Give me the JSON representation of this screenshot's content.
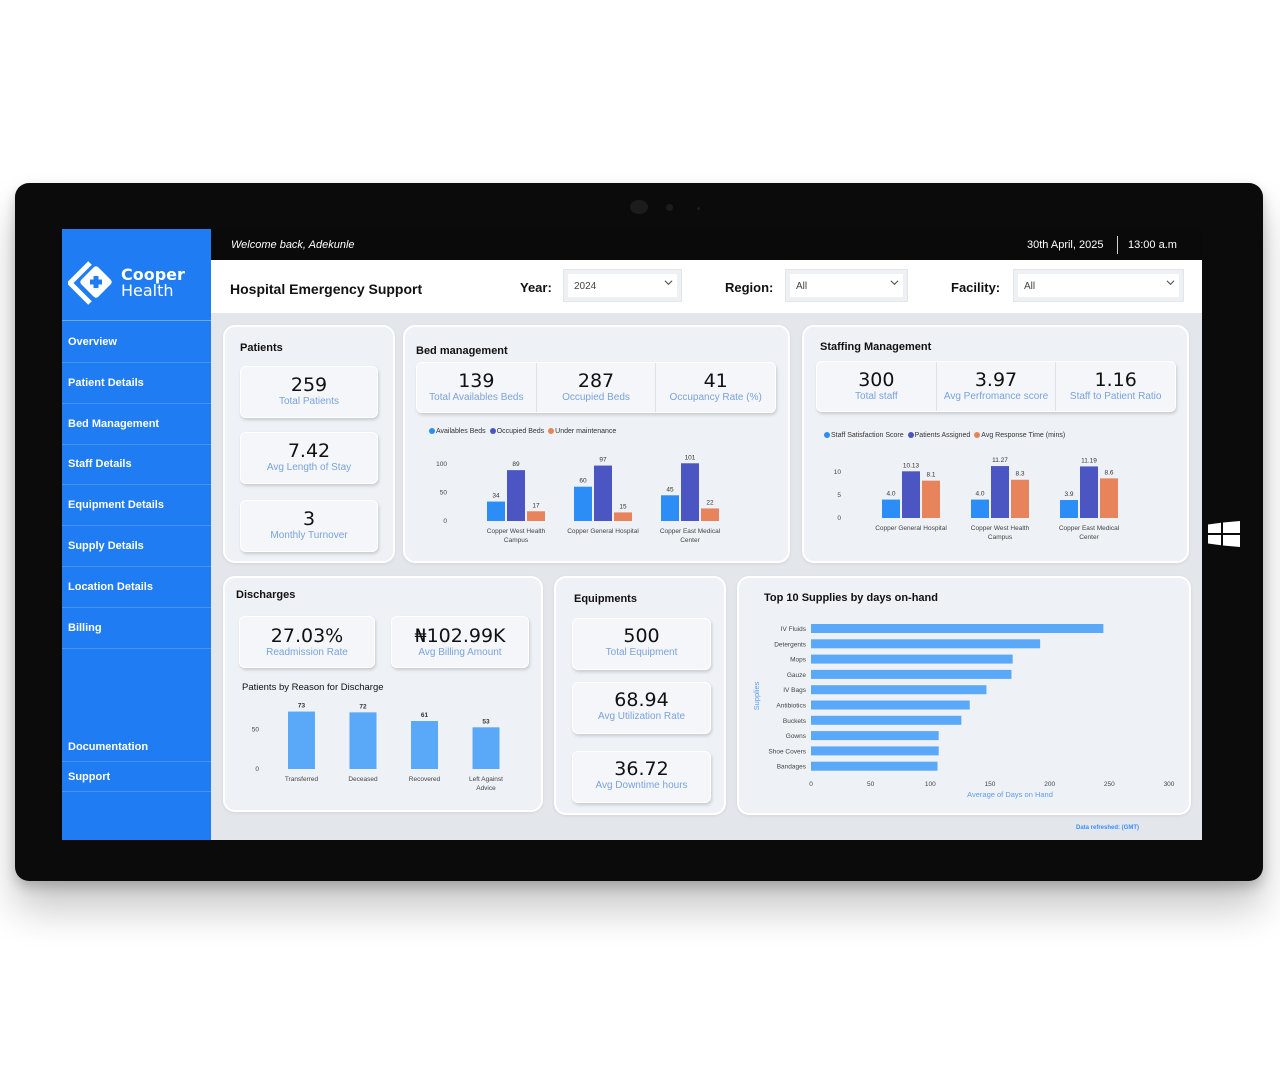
{
  "app": {
    "brand_line1": "Cooper",
    "brand_line2": "Health",
    "welcome": "Welcome back, Adekunle",
    "date": "30th April, 2025",
    "time": "13:00 a.m",
    "page_title": "Hospital Emergency Support",
    "data_refreshed": "Data refreshed: (GMT)"
  },
  "nav": {
    "items": [
      "Overview",
      "Patient Details",
      "Bed Management",
      "Staff Details",
      "Equipment Details",
      "Supply Details",
      "Location Details",
      "Billing"
    ],
    "documentation": "Documentation",
    "support": "Support"
  },
  "filters": {
    "year_label": "Year:",
    "year_value": "2024",
    "region_label": "Region:",
    "region_value": "All",
    "facility_label": "Facility:",
    "facility_value": "All"
  },
  "patients": {
    "title": "Patients",
    "kpis": [
      {
        "value": "259",
        "label": "Total Patients"
      },
      {
        "value": "7.42",
        "label": "Avg Length of Stay"
      },
      {
        "value": "3",
        "label": "Monthly Turnover"
      }
    ]
  },
  "beds": {
    "title": "Bed management",
    "kpis": [
      {
        "value": "139",
        "label": "Total Availables Beds"
      },
      {
        "value": "287",
        "label": "Occupied Beds"
      },
      {
        "value": "41",
        "label": "Occupancy Rate (%)"
      }
    ],
    "legend": [
      "Availables Beds",
      "Occupied Beds",
      "Under maintenance"
    ]
  },
  "staffing": {
    "title": "Staffing Management",
    "kpis": [
      {
        "value": "300",
        "label": "Total staff"
      },
      {
        "value": "3.97",
        "label": "Avg Perfromance score"
      },
      {
        "value": "1.16",
        "label": "Staff to Patient Ratio"
      }
    ],
    "legend": [
      "Staff Satisfaction Score",
      "Patients Assigned",
      "Avg Response Time (mins)"
    ]
  },
  "discharges": {
    "title": "Discharges",
    "kpis": [
      {
        "value": "27.03%",
        "label": "Readmission Rate"
      },
      {
        "value": "₦102.99K",
        "label": "Avg Billing Amount"
      }
    ],
    "chart_title": "Patients by Reason for Discharge"
  },
  "equipments": {
    "title": "Equipments",
    "kpis": [
      {
        "value": "500",
        "label": "Total Equipment"
      },
      {
        "value": "68.94",
        "label": "Avg Utilization Rate"
      },
      {
        "value": "36.72",
        "label": "Avg Downtime hours"
      }
    ]
  },
  "supplies": {
    "title": "Top 10 Supplies by days on-hand"
  },
  "colors": {
    "accent": "#1f7cf2",
    "series_light_blue": "#2b8df5",
    "series_indigo": "#4b56c2",
    "series_orange": "#e8845c",
    "bar_light": "#5aa9f8"
  },
  "chart_data": [
    {
      "id": "beds",
      "type": "bar",
      "categories": [
        "Copper West Health Campus",
        "Copper General Hospital",
        "Copper East Medical Center"
      ],
      "series": [
        {
          "name": "Availables Beds",
          "values": [
            34,
            60,
            45
          ]
        },
        {
          "name": "Occupied Beds",
          "values": [
            89,
            97,
            101
          ]
        },
        {
          "name": "Under maintenance",
          "values": [
            17,
            15,
            22
          ]
        }
      ],
      "yticks": [
        0,
        50,
        100
      ],
      "ylim": [
        0,
        105
      ],
      "legend": "top-left"
    },
    {
      "id": "staff",
      "type": "bar",
      "categories": [
        "Copper General Hospital",
        "Copper West Health Campus",
        "Copper East Medical Center"
      ],
      "series": [
        {
          "name": "Staff Satisfaction Score",
          "values": [
            4.0,
            4.0,
            3.9
          ]
        },
        {
          "name": "Patients Assigned",
          "values": [
            10.13,
            11.27,
            11.19
          ]
        },
        {
          "name": "Avg Response Time (mins)",
          "values": [
            8.1,
            8.3,
            8.6
          ]
        }
      ],
      "value_labels": [
        [
          "4.0",
          "4.0",
          "3.9"
        ],
        [
          "10.13",
          "11.27",
          "11.19"
        ],
        [
          "8.1",
          "8.3",
          "8.6"
        ]
      ],
      "yticks": [
        0,
        5,
        10
      ],
      "ylim": [
        0,
        11.5
      ],
      "legend": "top-left"
    },
    {
      "id": "discharge",
      "type": "bar",
      "categories": [
        "Transferred",
        "Deceased",
        "Recovered",
        "Left Against Advice"
      ],
      "values": [
        73,
        72,
        61,
        53
      ],
      "yticks": [
        0,
        50
      ],
      "ylim": [
        0,
        75
      ]
    },
    {
      "id": "supplies",
      "type": "bar",
      "orientation": "horizontal",
      "categories": [
        "IV Fluids",
        "Detergents",
        "Mops",
        "Gauze",
        "IV Bags",
        "Antibiotics",
        "Buckets",
        "Gowns",
        "Shoe Covers",
        "Bandages"
      ],
      "values": [
        245,
        192,
        169,
        168,
        147,
        133,
        126,
        107,
        107,
        106
      ],
      "xlabel": "Average of Days on Hand",
      "ylabel": "Supplies",
      "xticks": [
        0,
        50,
        100,
        150,
        200,
        250,
        300
      ],
      "xlim": [
        0,
        300
      ]
    }
  ]
}
